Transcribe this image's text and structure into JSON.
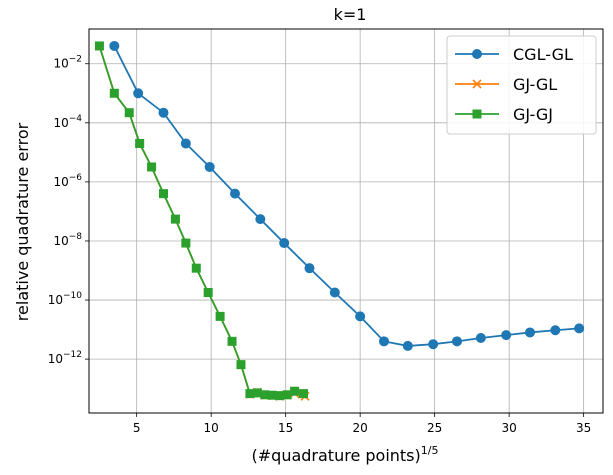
{
  "chart_data": {
    "type": "line",
    "title": "k=1",
    "xlabel": "(#quadrature points)",
    "xlabel_superscript": "1/5",
    "ylabel": "relative quadrature error",
    "xlim": [
      1.8,
      36.3
    ],
    "ylim": [
      1.5e-14,
      0.15
    ],
    "yscale": "log",
    "grid": true,
    "legend_position": "top-right",
    "x_ticks": [
      5,
      10,
      15,
      20,
      25,
      30,
      35
    ],
    "x_tick_labels": [
      "5",
      "10",
      "15",
      "20",
      "25",
      "30",
      "35"
    ],
    "y_ticks": [
      1e-12,
      1e-10,
      1e-08,
      1e-06,
      0.0001,
      0.01
    ],
    "y_tick_labels": [
      {
        "base": "10",
        "exp": "−12"
      },
      {
        "base": "10",
        "exp": "−10"
      },
      {
        "base": "10",
        "exp": "−8"
      },
      {
        "base": "10",
        "exp": "−6"
      },
      {
        "base": "10",
        "exp": "−4"
      },
      {
        "base": "10",
        "exp": "−2"
      }
    ],
    "series": [
      {
        "name": "CGL-GL",
        "color": "#1f77b4",
        "marker": "circle",
        "points": [
          [
            3.5,
            0.04
          ],
          [
            5.1,
            0.001
          ],
          [
            6.8,
            0.00022
          ],
          [
            8.3,
            2e-05
          ],
          [
            9.9,
            3.2e-06
          ],
          [
            11.6,
            4e-07
          ],
          [
            13.3,
            5.5e-08
          ],
          [
            14.9,
            8.5e-09
          ],
          [
            16.6,
            1.2e-09
          ],
          [
            18.3,
            1.8e-10
          ],
          [
            20.0,
            2.8e-11
          ],
          [
            21.6,
            4e-12
          ],
          [
            23.2,
            2.8e-12
          ],
          [
            24.9,
            3.2e-12
          ],
          [
            26.5,
            4e-12
          ],
          [
            28.1,
            5.2e-12
          ],
          [
            29.8,
            6.5e-12
          ],
          [
            31.4,
            8e-12
          ],
          [
            33.1,
            9.5e-12
          ],
          [
            34.7,
            1.1e-11
          ]
        ]
      },
      {
        "name": "GJ-GL",
        "color": "#ff7f0e",
        "marker": "x",
        "points": [
          [
            2.5,
            0.04
          ],
          [
            3.5,
            0.001
          ],
          [
            4.5,
            0.00022
          ],
          [
            5.2,
            2e-05
          ],
          [
            6.0,
            3.2e-06
          ],
          [
            6.8,
            4e-07
          ],
          [
            7.6,
            5.5e-08
          ],
          [
            8.3,
            8.5e-09
          ],
          [
            9.0,
            1.2e-09
          ],
          [
            9.8,
            1.8e-10
          ],
          [
            10.6,
            2.8e-11
          ],
          [
            11.4,
            4e-12
          ],
          [
            12.0,
            6.5e-13
          ],
          [
            12.6,
            6.5e-14
          ],
          [
            13.1,
            7.5e-14
          ],
          [
            13.6,
            6e-14
          ],
          [
            14.1,
            5.8e-14
          ],
          [
            14.6,
            5.5e-14
          ],
          [
            15.1,
            6e-14
          ],
          [
            15.6,
            7e-14
          ],
          [
            16.1,
            6.5e-14
          ],
          [
            16.3,
            5.5e-14
          ]
        ]
      },
      {
        "name": "GJ-GJ",
        "color": "#2ca02c",
        "marker": "square",
        "points": [
          [
            2.5,
            0.04
          ],
          [
            3.5,
            0.001
          ],
          [
            4.5,
            0.00022
          ],
          [
            5.2,
            2e-05
          ],
          [
            6.0,
            3.2e-06
          ],
          [
            6.8,
            4e-07
          ],
          [
            7.6,
            5.5e-08
          ],
          [
            8.3,
            8.5e-09
          ],
          [
            9.0,
            1.2e-09
          ],
          [
            9.8,
            1.8e-10
          ],
          [
            10.6,
            2.8e-11
          ],
          [
            11.4,
            4e-12
          ],
          [
            12.0,
            6.5e-13
          ],
          [
            12.6,
            6.8e-14
          ],
          [
            13.1,
            7.2e-14
          ],
          [
            13.6,
            6.2e-14
          ],
          [
            14.1,
            6e-14
          ],
          [
            14.6,
            5.8e-14
          ],
          [
            15.1,
            6.2e-14
          ],
          [
            15.6,
            8.2e-14
          ],
          [
            16.2,
            6.8e-14
          ]
        ]
      }
    ]
  }
}
